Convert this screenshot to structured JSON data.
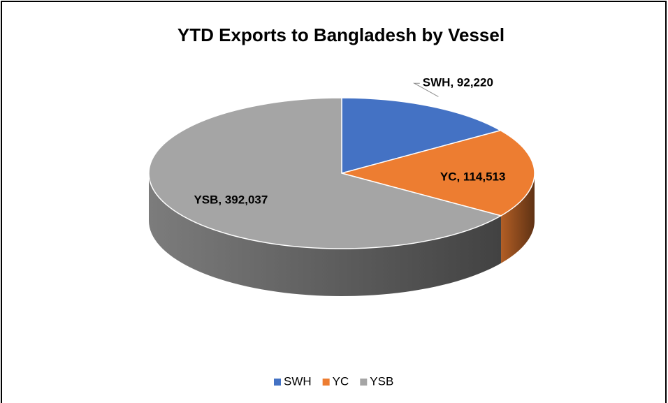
{
  "chart_data": {
    "type": "pie",
    "title": "YTD Exports to Bangladesh by Vessel",
    "categories": [
      "SWH",
      "YC",
      "YSB"
    ],
    "values": [
      92220,
      114513,
      392037
    ],
    "value_labels": [
      "SWH, 92,220",
      "YC, 114,513",
      "YSB, 392,037"
    ],
    "colors": [
      "#4472c4",
      "#ed7d31",
      "#a5a5a5"
    ],
    "legend": "bottom"
  }
}
